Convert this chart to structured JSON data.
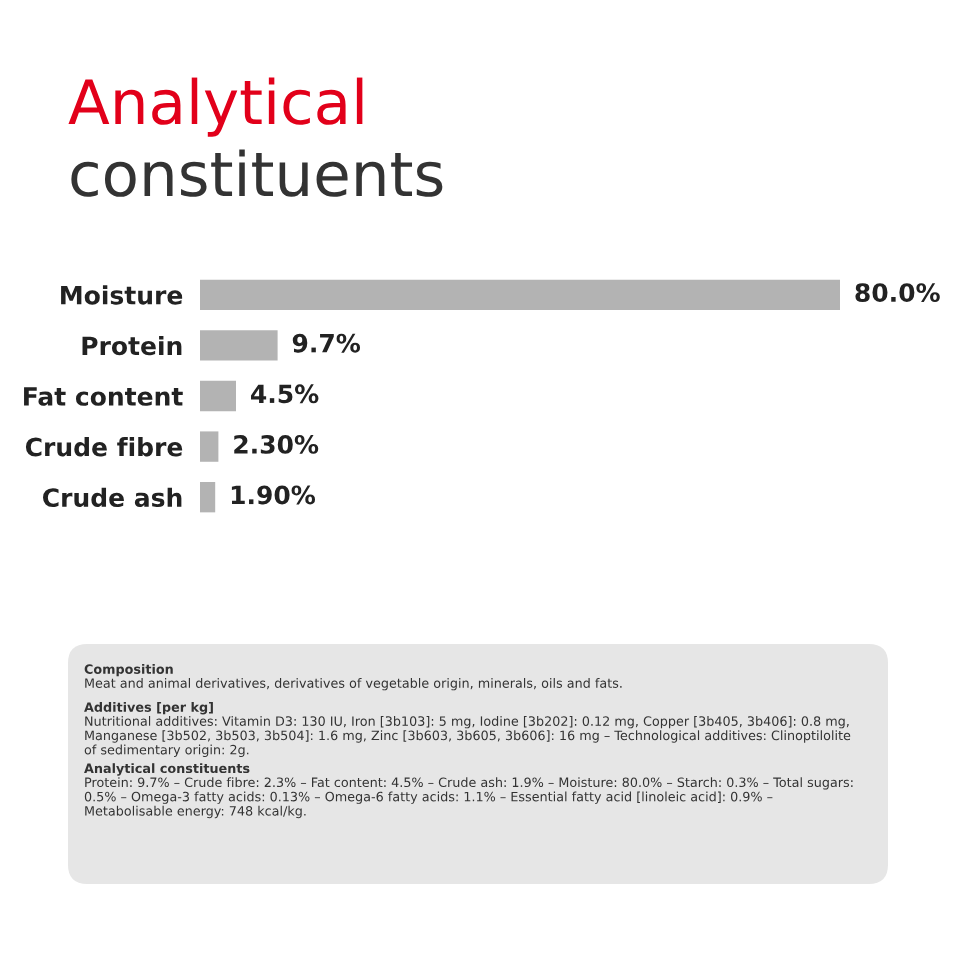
{
  "chart_data": {
    "type": "bar",
    "orientation": "horizontal",
    "title": "Analytical",
    "subtitle": "constituents",
    "categories": [
      "Moisture",
      "Protein",
      "Fat content",
      "Crude fibre",
      "Crude ash"
    ],
    "values": [
      80.0,
      9.7,
      4.5,
      2.3,
      1.9
    ],
    "value_labels": [
      "80.0%",
      "9.7%",
      "4.5%",
      "2.30%",
      "1.90%"
    ],
    "color": "#b3b3b3",
    "grid": false,
    "legend": false,
    "annotations": [
      "Composition",
      "Meat and animal derivatives, derivatives of vegetable origin, minerals, oils and fats.",
      "Additives [per kg]",
      "Nutritional additives: Vitamin D3: 130 IU, Iron [3b103]: 5 mg, Iodine [3b202]: 0.12 mg, Copper [3b405, 3b406]: 0.8 mg, Manganese [3b502, 3b503, 3b504]: 1.6 mg, Zinc [3b603, 3b605, 3b606]: 16 mg – Technological additives: Clinoptilolite of sedimentary origin: 2g.",
      "Analytical constituents",
      "Protein: 9.7% – Crude fibre: 2.3% – Fat content: 4.5% – Crude ash: 1.9% – Moisture: 80.0% – Starch: 0.3% – Total sugars: 0.5% – Omega-3 fatty acids: 0.13% – Omega-6 fatty acids: 1.1% – Essential fatty acid [linoleic acid]: 0.9% – Metabolisable energy: 748 kcal/kg."
    ]
  }
}
